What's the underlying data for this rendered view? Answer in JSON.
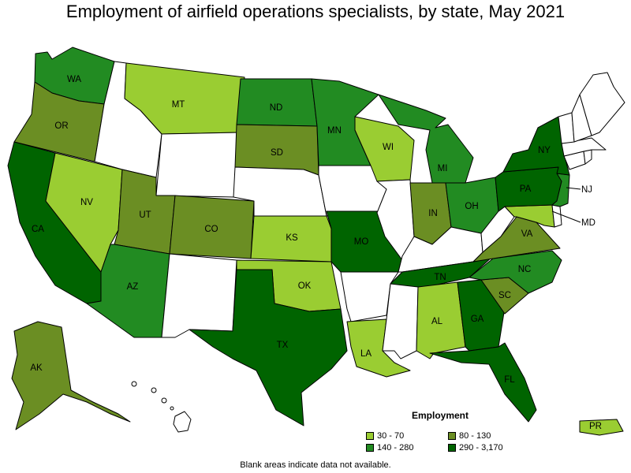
{
  "title": "Employment of airfield operations specialists, by state, May 2021",
  "legend": {
    "title": "Employment",
    "items": [
      {
        "label": "30 - 70",
        "color": "#9acd32"
      },
      {
        "label": "80 - 130",
        "color": "#6b8e23"
      },
      {
        "label": "140 - 280",
        "color": "#228b22"
      },
      {
        "label": "290 - 3,170",
        "color": "#006400"
      }
    ]
  },
  "footnote": "Blank areas indicate data not available.",
  "states": [
    {
      "abbr": "WA",
      "bin": 2
    },
    {
      "abbr": "OR",
      "bin": 1
    },
    {
      "abbr": "CA",
      "bin": 3
    },
    {
      "abbr": "NV",
      "bin": 0
    },
    {
      "abbr": "ID",
      "bin": null
    },
    {
      "abbr": "MT",
      "bin": 0
    },
    {
      "abbr": "WY",
      "bin": null
    },
    {
      "abbr": "UT",
      "bin": 1
    },
    {
      "abbr": "AZ",
      "bin": 2
    },
    {
      "abbr": "CO",
      "bin": 1
    },
    {
      "abbr": "NM",
      "bin": null
    },
    {
      "abbr": "ND",
      "bin": 2
    },
    {
      "abbr": "SD",
      "bin": 1
    },
    {
      "abbr": "NE",
      "bin": null
    },
    {
      "abbr": "KS",
      "bin": 0
    },
    {
      "abbr": "OK",
      "bin": 0
    },
    {
      "abbr": "TX",
      "bin": 3
    },
    {
      "abbr": "MN",
      "bin": 2
    },
    {
      "abbr": "IA",
      "bin": null
    },
    {
      "abbr": "MO",
      "bin": 3
    },
    {
      "abbr": "AR",
      "bin": null
    },
    {
      "abbr": "LA",
      "bin": 0
    },
    {
      "abbr": "WI",
      "bin": 0
    },
    {
      "abbr": "IL",
      "bin": null
    },
    {
      "abbr": "MI",
      "bin": 2
    },
    {
      "abbr": "IN",
      "bin": 1
    },
    {
      "abbr": "OH",
      "bin": 2
    },
    {
      "abbr": "KY",
      "bin": null
    },
    {
      "abbr": "TN",
      "bin": 3
    },
    {
      "abbr": "MS",
      "bin": null
    },
    {
      "abbr": "AL",
      "bin": 0
    },
    {
      "abbr": "GA",
      "bin": 3
    },
    {
      "abbr": "FL",
      "bin": 3
    },
    {
      "abbr": "SC",
      "bin": 1
    },
    {
      "abbr": "NC",
      "bin": 2
    },
    {
      "abbr": "VA",
      "bin": 1
    },
    {
      "abbr": "WV",
      "bin": null
    },
    {
      "abbr": "PA",
      "bin": 3
    },
    {
      "abbr": "NY",
      "bin": 3
    },
    {
      "abbr": "NJ",
      "bin": 2
    },
    {
      "abbr": "MD",
      "bin": 0
    },
    {
      "abbr": "DE",
      "bin": null
    },
    {
      "abbr": "VT",
      "bin": null
    },
    {
      "abbr": "NH",
      "bin": null
    },
    {
      "abbr": "ME",
      "bin": null
    },
    {
      "abbr": "MA",
      "bin": null
    },
    {
      "abbr": "CT",
      "bin": null
    },
    {
      "abbr": "RI",
      "bin": null
    },
    {
      "abbr": "AK",
      "bin": 1
    },
    {
      "abbr": "HI",
      "bin": null
    },
    {
      "abbr": "PR",
      "bin": 0
    }
  ]
}
